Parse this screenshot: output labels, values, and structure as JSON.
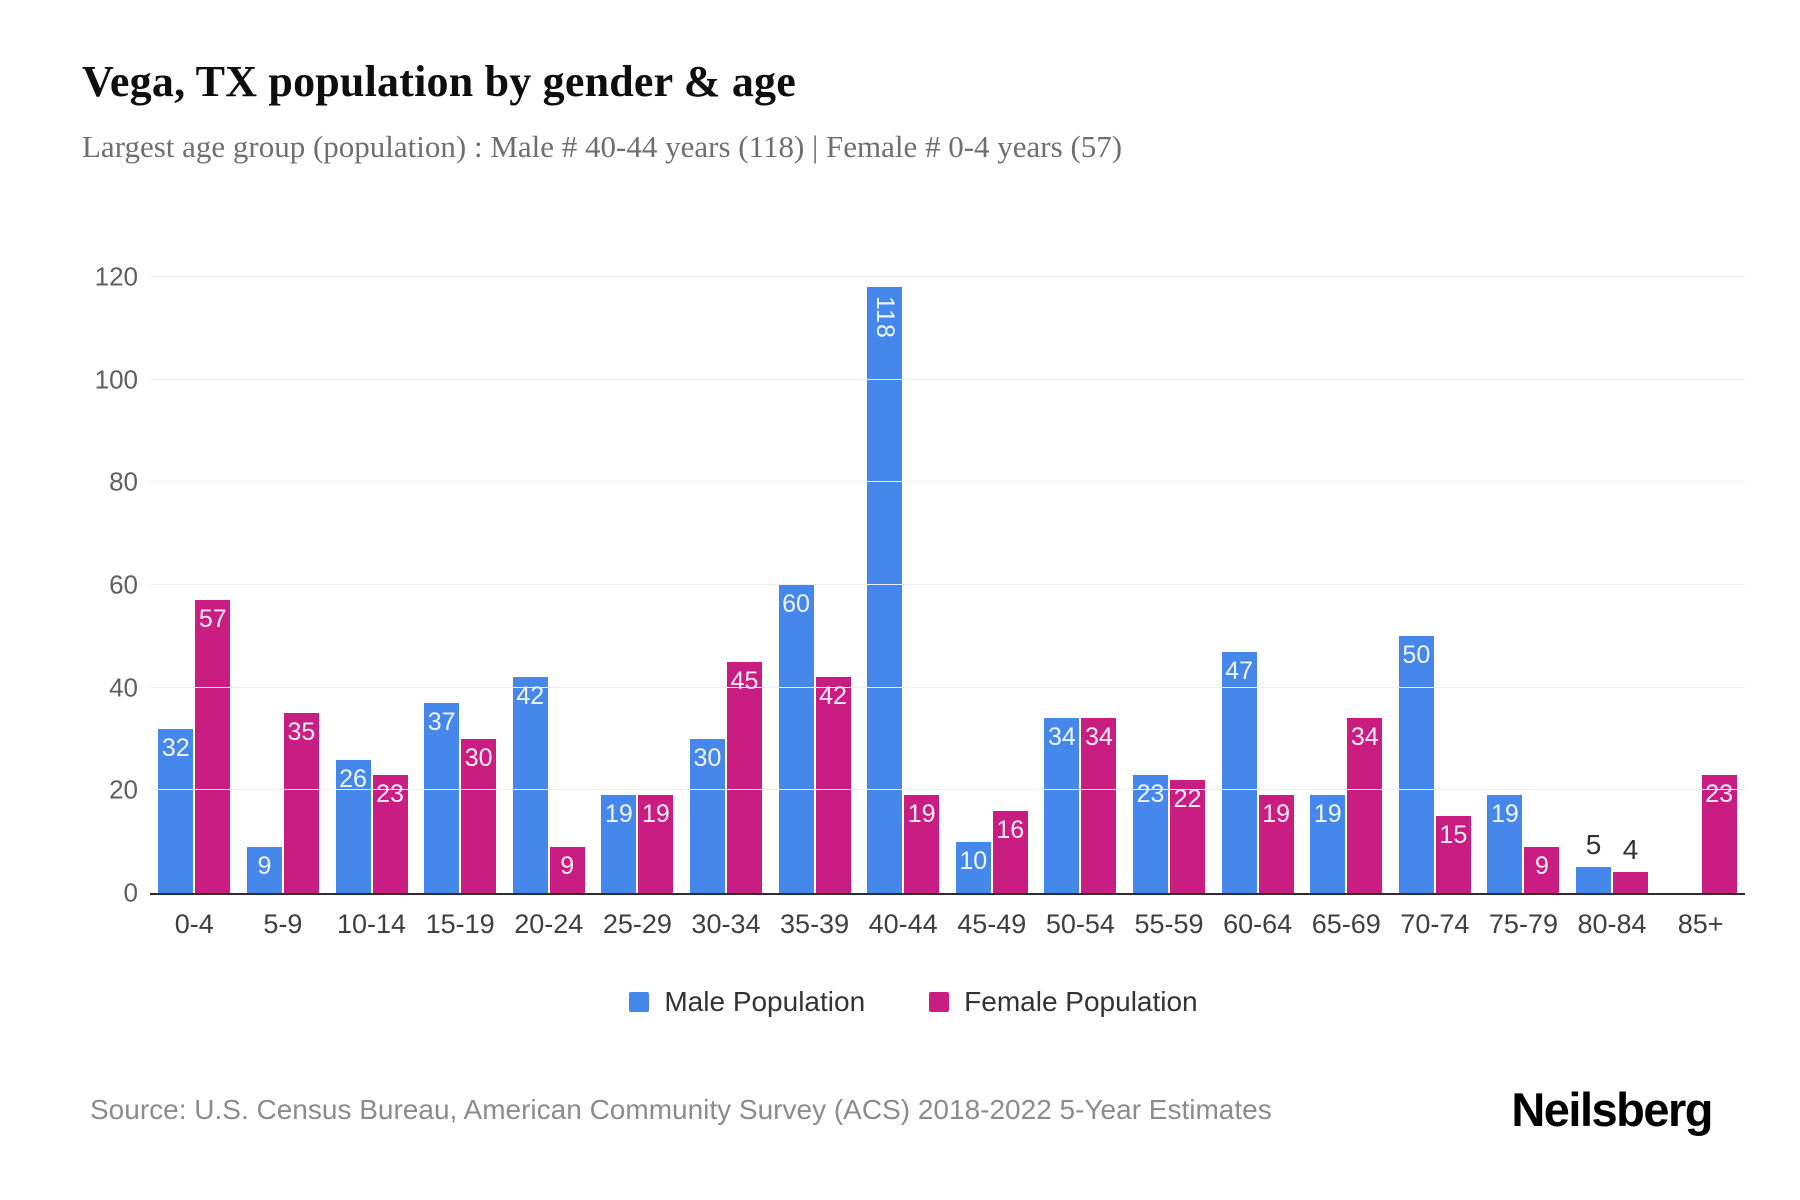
{
  "header": {
    "title": "Vega, TX population by gender & age",
    "subtitle": "Largest age group (population) : Male # 40-44 years (118) | Female # 0-4 years (57)"
  },
  "chart_data": {
    "type": "bar",
    "title": "Vega, TX population by gender & age",
    "xlabel": "",
    "ylabel": "",
    "categories": [
      "0-4",
      "5-9",
      "10-14",
      "15-19",
      "20-24",
      "25-29",
      "30-34",
      "35-39",
      "40-44",
      "45-49",
      "50-54",
      "55-59",
      "60-64",
      "65-69",
      "70-74",
      "75-79",
      "80-84",
      "85+"
    ],
    "series": [
      {
        "name": "Male Population",
        "color": "#4687EB",
        "values": [
          32,
          9,
          26,
          37,
          42,
          19,
          30,
          60,
          118,
          10,
          34,
          23,
          47,
          19,
          50,
          19,
          5,
          0
        ]
      },
      {
        "name": "Female Population",
        "color": "#C91D81",
        "values": [
          57,
          35,
          23,
          30,
          9,
          19,
          45,
          42,
          19,
          16,
          34,
          22,
          19,
          34,
          15,
          9,
          4,
          23
        ]
      }
    ],
    "ylim": [
      0,
      120
    ],
    "yticks": [
      0,
      20,
      40,
      60,
      80,
      100,
      120
    ],
    "grid": "horizontal",
    "legend_position": "bottom"
  },
  "footer": {
    "source": "Source: U.S. Census Bureau, American Community Survey (ACS) 2018-2022 5-Year Estimates",
    "brand": "Neilsberg"
  }
}
